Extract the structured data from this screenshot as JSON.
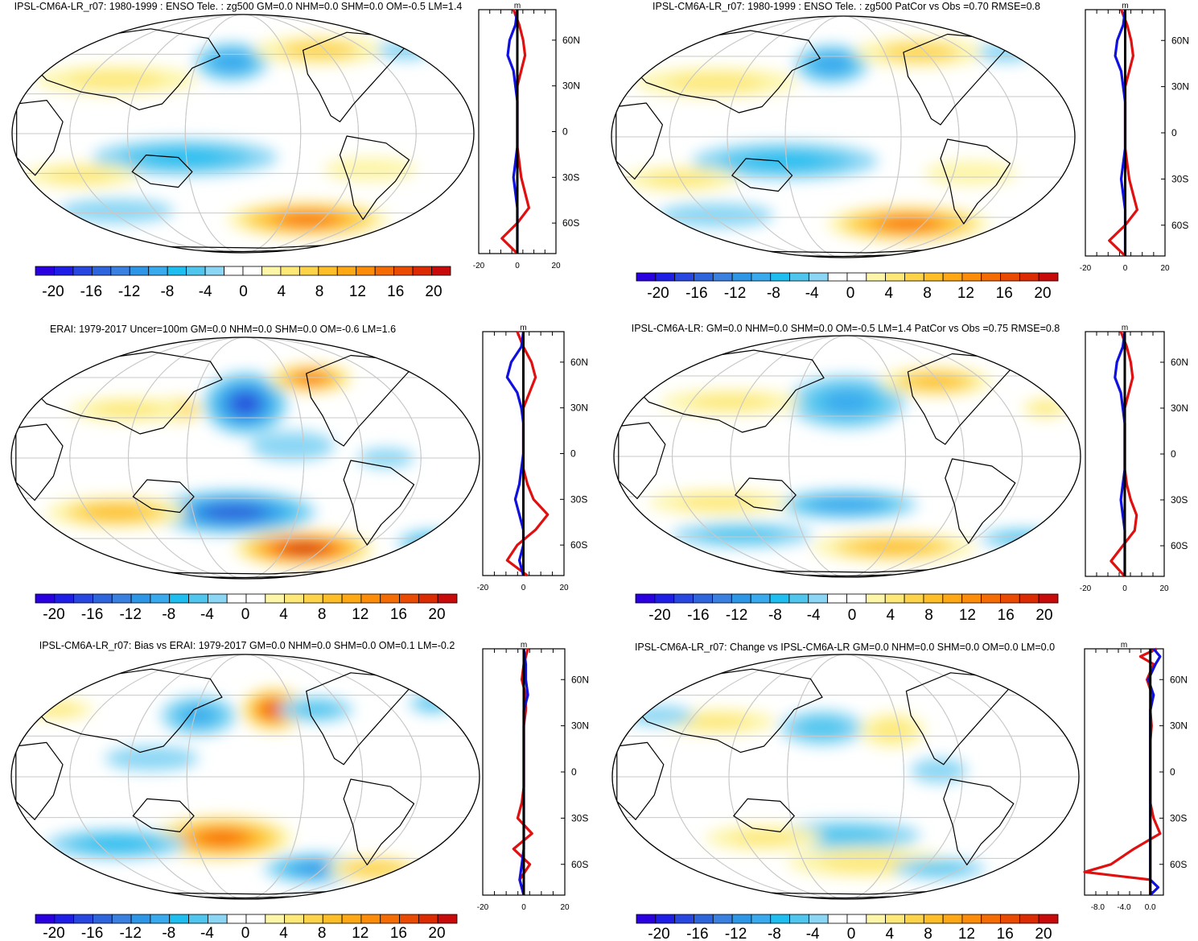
{
  "chart_data": [
    {
      "type": "heatmap",
      "map_projection": "Robinson",
      "title": "IPSL-CM6A-LR_r07: 1980-1999 : ENSO Tele. : zg500 GM=0.0 NHM=0.0 SHM=0.0 OM=-0.5 LM=1.4",
      "colorbar": {
        "levels": [
          -22,
          -20,
          -18,
          -16,
          -14,
          -12,
          -10,
          -8,
          -6,
          -4,
          -2,
          0,
          2,
          4,
          6,
          8,
          10,
          12,
          14,
          16,
          18,
          20,
          22
        ],
        "tick_labels": [
          "-20",
          "-16",
          "-12",
          "-8",
          "-4",
          "0",
          "4",
          "8",
          "12",
          "16",
          "20"
        ]
      },
      "zonal_mean": {
        "xlabel": "m",
        "xlim": [
          -20,
          20
        ],
        "x_tick_labels": [
          "-20",
          "0",
          "20"
        ],
        "lat_tick_labels": [
          "60N",
          "30N",
          "0",
          "30S",
          "60S"
        ],
        "series": [
          {
            "name": "model",
            "color": "#e01010",
            "lat": [
              80,
              70,
              60,
              50,
              40,
              30,
              20,
              10,
              0,
              -10,
              -20,
              -30,
              -40,
              -50,
              -60,
              -70,
              -80
            ],
            "values": [
              -2,
              1,
              3,
              4,
              2,
              0,
              0,
              0,
              0,
              0,
              1,
              2,
              4,
              6,
              0,
              -8,
              0
            ]
          },
          {
            "name": "mean-negative",
            "color": "#1010e0",
            "lat": [
              80,
              70,
              60,
              50,
              40,
              30,
              20,
              10,
              0,
              -10,
              -20,
              -30,
              -40,
              -50,
              -60,
              -70,
              -80
            ],
            "values": [
              0,
              -1,
              -4,
              -5,
              -2,
              -1,
              0,
              0,
              0,
              0,
              -1,
              -2,
              -1,
              0,
              0,
              0,
              0
            ]
          },
          {
            "name": "zero",
            "color": "#000000",
            "lat": [
              80,
              0,
              -80
            ],
            "values": [
              0,
              0,
              0
            ]
          }
        ]
      }
    },
    {
      "type": "heatmap",
      "map_projection": "Robinson",
      "title": "IPSL-CM6A-LR_r07: 1980-1999 : ENSO Tele. : zg500 PatCor vs Obs =0.70 RMSE=0.8",
      "colorbar": {
        "levels": [
          -22,
          -20,
          -18,
          -16,
          -14,
          -12,
          -10,
          -8,
          -6,
          -4,
          -2,
          0,
          2,
          4,
          6,
          8,
          10,
          12,
          14,
          16,
          18,
          20,
          22
        ],
        "tick_labels": [
          "-20",
          "-16",
          "-12",
          "-8",
          "-4",
          "0",
          "4",
          "8",
          "12",
          "16",
          "20"
        ]
      },
      "zonal_mean": {
        "xlabel": "m",
        "xlim": [
          -20,
          20
        ],
        "x_tick_labels": [
          "-20",
          "0",
          "20"
        ],
        "lat_tick_labels": [
          "60N",
          "30N",
          "0",
          "30S",
          "60S"
        ],
        "series": [
          {
            "name": "model",
            "color": "#e01010",
            "lat": [
              80,
              70,
              60,
              50,
              40,
              30,
              20,
              10,
              0,
              -10,
              -20,
              -30,
              -40,
              -50,
              -60,
              -70,
              -80
            ],
            "values": [
              -2,
              1,
              3,
              4,
              2,
              0,
              0,
              0,
              0,
              0,
              1,
              2,
              4,
              6,
              0,
              -8,
              0
            ]
          },
          {
            "name": "mean-negative",
            "color": "#1010e0",
            "lat": [
              80,
              70,
              60,
              50,
              40,
              30,
              20,
              10,
              0,
              -10,
              -20,
              -30,
              -40,
              -50,
              -60,
              -70,
              -80
            ],
            "values": [
              0,
              -1,
              -4,
              -5,
              -2,
              -1,
              0,
              0,
              0,
              0,
              -1,
              -2,
              -1,
              0,
              0,
              0,
              0
            ]
          },
          {
            "name": "zero",
            "color": "#000000",
            "lat": [
              80,
              0,
              -80
            ],
            "values": [
              0,
              0,
              0
            ]
          }
        ]
      }
    },
    {
      "type": "heatmap",
      "map_projection": "Robinson",
      "title": "ERAI: 1979-2017 Uncer=100m GM=0.0 NHM=0.0 SHM=0.0 OM=-0.6 LM=1.6",
      "colorbar": {
        "levels": [
          -22,
          -20,
          -18,
          -16,
          -14,
          -12,
          -10,
          -8,
          -6,
          -4,
          -2,
          0,
          2,
          4,
          6,
          8,
          10,
          12,
          14,
          16,
          18,
          20,
          22
        ],
        "tick_labels": [
          "-20",
          "-16",
          "-12",
          "-8",
          "-4",
          "0",
          "4",
          "8",
          "12",
          "16",
          "20"
        ]
      },
      "zonal_mean": {
        "xlabel": "m",
        "xlim": [
          -20,
          20
        ],
        "x_tick_labels": [
          "-20",
          "0",
          "20"
        ],
        "lat_tick_labels": [
          "60N",
          "30N",
          "0",
          "30S",
          "60S"
        ],
        "series": [
          {
            "name": "model",
            "color": "#e01010",
            "lat": [
              80,
              70,
              60,
              50,
              40,
              30,
              20,
              10,
              0,
              -10,
              -20,
              -30,
              -40,
              -50,
              -60,
              -70,
              -80
            ],
            "values": [
              -3,
              0,
              4,
              6,
              3,
              0,
              0,
              0,
              0,
              0,
              2,
              5,
              12,
              6,
              -3,
              -8,
              2
            ]
          },
          {
            "name": "mean-negative",
            "color": "#1010e0",
            "lat": [
              80,
              70,
              60,
              50,
              40,
              30,
              20,
              10,
              0,
              -10,
              -20,
              -30,
              -40,
              -50,
              -60,
              -70,
              -80
            ],
            "values": [
              0,
              -1,
              -6,
              -8,
              -3,
              -1,
              0,
              0,
              0,
              -1,
              -2,
              -4,
              -2,
              0,
              0,
              -2,
              0
            ]
          },
          {
            "name": "zero",
            "color": "#000000",
            "lat": [
              80,
              0,
              -80
            ],
            "values": [
              0,
              0,
              0
            ]
          }
        ]
      }
    },
    {
      "type": "heatmap",
      "map_projection": "Robinson",
      "title": "IPSL-CM6A-LR: GM=0.0 NHM=0.0 SHM=0.0 OM=-0.5 LM=1.4 PatCor vs Obs =0.75 RMSE=0.8",
      "colorbar": {
        "levels": [
          -22,
          -20,
          -18,
          -16,
          -14,
          -12,
          -10,
          -8,
          -6,
          -4,
          -2,
          0,
          2,
          4,
          6,
          8,
          10,
          12,
          14,
          16,
          18,
          20,
          22
        ],
        "tick_labels": [
          "-20",
          "-16",
          "-12",
          "-8",
          "-4",
          "0",
          "4",
          "8",
          "12",
          "16",
          "20"
        ]
      },
      "zonal_mean": {
        "xlabel": "m",
        "xlim": [
          -20,
          20
        ],
        "x_tick_labels": [
          "-20",
          "0",
          "20"
        ],
        "lat_tick_labels": [
          "60N",
          "30N",
          "0",
          "30S",
          "60S"
        ],
        "series": [
          {
            "name": "model",
            "color": "#e01010",
            "lat": [
              80,
              70,
              60,
              50,
              40,
              30,
              20,
              10,
              0,
              -10,
              -20,
              -30,
              -40,
              -50,
              -60,
              -70,
              -80
            ],
            "values": [
              -2,
              1,
              3,
              4,
              2,
              0,
              0,
              0,
              0,
              0,
              1,
              3,
              6,
              5,
              -1,
              -7,
              0
            ]
          },
          {
            "name": "mean-negative",
            "color": "#1010e0",
            "lat": [
              80,
              70,
              60,
              50,
              40,
              30,
              20,
              10,
              0,
              -10,
              -20,
              -30,
              -40,
              -50,
              -60,
              -70,
              -80
            ],
            "values": [
              0,
              -1,
              -4,
              -5,
              -2,
              -1,
              0,
              0,
              0,
              0,
              -1,
              -2,
              -1,
              0,
              0,
              0,
              0
            ]
          },
          {
            "name": "zero",
            "color": "#000000",
            "lat": [
              80,
              0,
              -80
            ],
            "values": [
              0,
              0,
              0
            ]
          }
        ]
      }
    },
    {
      "type": "heatmap",
      "map_projection": "Robinson",
      "title": "IPSL-CM6A-LR_r07: Bias vs ERAI: 1979-2017 GM=0.0 NHM=0.0 SHM=0.0 OM=0.1 LM=-0.2",
      "colorbar": {
        "levels": [
          -22,
          -20,
          -18,
          -16,
          -14,
          -12,
          -10,
          -8,
          -6,
          -4,
          -2,
          0,
          2,
          4,
          6,
          8,
          10,
          12,
          14,
          16,
          18,
          20,
          22
        ],
        "tick_labels": [
          "-20",
          "-16",
          "-12",
          "-8",
          "-4",
          "0",
          "4",
          "8",
          "12",
          "16",
          "20"
        ]
      },
      "zonal_mean": {
        "xlabel": "m",
        "xlim": [
          -20,
          20
        ],
        "x_tick_labels": [
          "-20",
          "0",
          "20"
        ],
        "lat_tick_labels": [
          "60N",
          "30N",
          "0",
          "30S",
          "60S"
        ],
        "series": [
          {
            "name": "model",
            "color": "#e01010",
            "lat": [
              80,
              70,
              60,
              50,
              40,
              30,
              20,
              10,
              0,
              -10,
              -20,
              -30,
              -40,
              -50,
              -60,
              -70,
              -80
            ],
            "values": [
              2,
              0,
              -1,
              1,
              1,
              0,
              0,
              0,
              0,
              0,
              -1,
              -3,
              4,
              -5,
              3,
              -2,
              0
            ]
          },
          {
            "name": "mean-negative",
            "color": "#1010e0",
            "lat": [
              80,
              70,
              60,
              50,
              40,
              30,
              20,
              10,
              0,
              -10,
              -20,
              -30,
              -40,
              -50,
              -60,
              -70,
              -80
            ],
            "values": [
              0,
              1,
              1,
              2,
              0,
              0,
              0,
              0,
              0,
              0,
              0,
              0,
              0,
              0,
              -1,
              -2,
              0
            ]
          },
          {
            "name": "zero",
            "color": "#000000",
            "lat": [
              80,
              0,
              -80
            ],
            "values": [
              0,
              0,
              0
            ]
          }
        ]
      }
    },
    {
      "type": "heatmap",
      "map_projection": "Robinson",
      "title": "IPSL-CM6A-LR_r07: Change vs IPSL-CM6A-LR GM=0.0 NHM=0.0 SHM=0.0 OM=0.0 LM=0.0",
      "colorbar": {
        "levels": [
          -22,
          -20,
          -18,
          -16,
          -14,
          -12,
          -10,
          -8,
          -6,
          -4,
          -2,
          0,
          2,
          4,
          6,
          8,
          10,
          12,
          14,
          16,
          18,
          20,
          22
        ],
        "tick_labels": [
          "-20",
          "-16",
          "-12",
          "-8",
          "-4",
          "0",
          "4",
          "8",
          "12",
          "16",
          "20"
        ]
      },
      "zonal_mean": {
        "xlabel": "m",
        "xlim": [
          -10,
          2
        ],
        "x_tick_labels": [
          "-8.0",
          "-4.0",
          "0.0"
        ],
        "lat_tick_labels": [
          "60N",
          "30N",
          "0",
          "30S",
          "60S"
        ],
        "series": [
          {
            "name": "model",
            "color": "#e01010",
            "lat": [
              80,
              75,
              70,
              60,
              50,
              40,
              30,
              20,
              10,
              0,
              -10,
              -20,
              -30,
              -40,
              -50,
              -60,
              -65,
              -70,
              -80
            ],
            "values": [
              1,
              -1.5,
              0.5,
              -0.5,
              0.3,
              0,
              0.2,
              0,
              0,
              0,
              0,
              0,
              0.5,
              1.5,
              -2.5,
              -6,
              -10,
              0,
              0
            ]
          },
          {
            "name": "mean-negative",
            "color": "#1010e0",
            "lat": [
              80,
              75,
              70,
              60,
              50,
              40,
              30,
              20,
              10,
              0,
              -10,
              -20,
              -30,
              -40,
              -50,
              -60,
              -70,
              -75,
              -80
            ],
            "values": [
              0.5,
              1.5,
              0.8,
              -0.3,
              0.5,
              0,
              0,
              0,
              0,
              0,
              0,
              0,
              0,
              0,
              0,
              0,
              0,
              1.2,
              0
            ]
          },
          {
            "name": "zero",
            "color": "#000000",
            "lat": [
              80,
              0,
              -80
            ],
            "values": [
              0,
              0,
              0
            ]
          }
        ]
      }
    }
  ]
}
